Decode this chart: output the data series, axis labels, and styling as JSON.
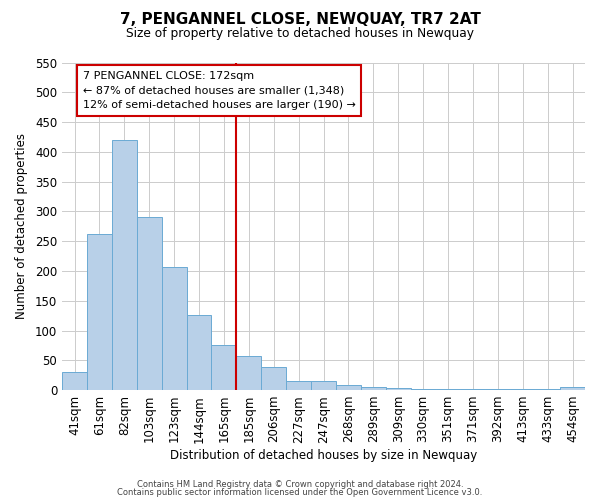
{
  "title": "7, PENGANNEL CLOSE, NEWQUAY, TR7 2AT",
  "subtitle": "Size of property relative to detached houses in Newquay",
  "xlabel": "Distribution of detached houses by size in Newquay",
  "ylabel": "Number of detached properties",
  "bar_labels": [
    "41sqm",
    "61sqm",
    "82sqm",
    "103sqm",
    "123sqm",
    "144sqm",
    "165sqm",
    "185sqm",
    "206sqm",
    "227sqm",
    "247sqm",
    "268sqm",
    "289sqm",
    "309sqm",
    "330sqm",
    "351sqm",
    "371sqm",
    "392sqm",
    "413sqm",
    "433sqm",
    "454sqm"
  ],
  "bar_heights": [
    30,
    262,
    420,
    290,
    207,
    126,
    75,
    57,
    38,
    15,
    15,
    8,
    5,
    3,
    2,
    1,
    1,
    1,
    1,
    1,
    5
  ],
  "bar_color": "#b8d0e8",
  "bar_edge_color": "#6aaad4",
  "vline_pos": 6.5,
  "vline_color": "#cc0000",
  "ylim": [
    0,
    550
  ],
  "yticks": [
    0,
    50,
    100,
    150,
    200,
    250,
    300,
    350,
    400,
    450,
    500,
    550
  ],
  "annotation_title": "7 PENGANNEL CLOSE: 172sqm",
  "annotation_line1": "← 87% of detached houses are smaller (1,348)",
  "annotation_line2": "12% of semi-detached houses are larger (190) →",
  "annotation_box_facecolor": "#ffffff",
  "annotation_box_edgecolor": "#cc0000",
  "footer1": "Contains HM Land Registry data © Crown copyright and database right 2024.",
  "footer2": "Contains public sector information licensed under the Open Government Licence v3.0.",
  "background_color": "#ffffff",
  "grid_color": "#cccccc"
}
